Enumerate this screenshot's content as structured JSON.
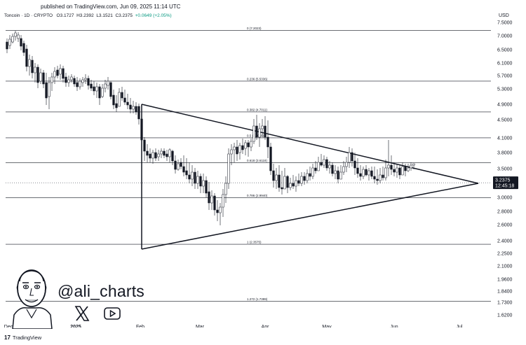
{
  "header": {
    "published": "published on TradingView.com, Jun 09, 2025 11:14 UTC",
    "symbol": "Toncoin · 1D · CRYPTO",
    "open": "O3.1727",
    "high": "H3.2392",
    "low": "L3.1521",
    "close": "C3.2375",
    "change": "+0.0649 (+2.05%)",
    "currency": "USD"
  },
  "price_axis": {
    "ticks": [
      "7.5000",
      "7.0000",
      "6.5000",
      "6.1000",
      "5.7000",
      "5.3000",
      "4.9000",
      "4.5000",
      "4.1000",
      "3.8000",
      "3.5000",
      "3.2000",
      "3.0000",
      "2.8000",
      "2.6000",
      "2.4000",
      "2.2500",
      "2.1000",
      "1.9600",
      "1.8400",
      "1.7300",
      "1.6200"
    ],
    "current_price": "3.2375",
    "countdown": "12:45:18"
  },
  "time_axis": {
    "labels": [
      "Dec",
      "2025",
      "Feb",
      "Mar",
      "Apr",
      "May",
      "Jun",
      "Jul"
    ]
  },
  "fib_levels": [
    {
      "label": "0 (7.2023)",
      "price": 7.2023
    },
    {
      "label": "0.236 (5.5336)",
      "price": 5.5336
    },
    {
      "label": "0.382 (4.7011)",
      "price": 4.7011
    },
    {
      "label": "0.5 (4.1016)",
      "price": 4.1016
    },
    {
      "label": "0.618 (3.6118)",
      "price": 3.6118
    },
    {
      "label": "0.786 (2.9940)",
      "price": 2.994
    },
    {
      "label": "1 (2.3575)",
      "price": 2.3575
    },
    {
      "label": "1.272 (1.7399)",
      "price": 1.7399
    }
  ],
  "watermark": {
    "handle": "@ali_charts"
  },
  "footer": {
    "brand": "TradingView",
    "logo_mark": "17"
  },
  "icons": [
    "x-logo-icon",
    "youtube-logo-icon",
    "tradingview-logo-icon",
    "avatar-illustration"
  ],
  "colors": {
    "up": "#ffffff",
    "down": "#131722",
    "lines": "#131722",
    "price_marker_bg": "#131722"
  }
}
